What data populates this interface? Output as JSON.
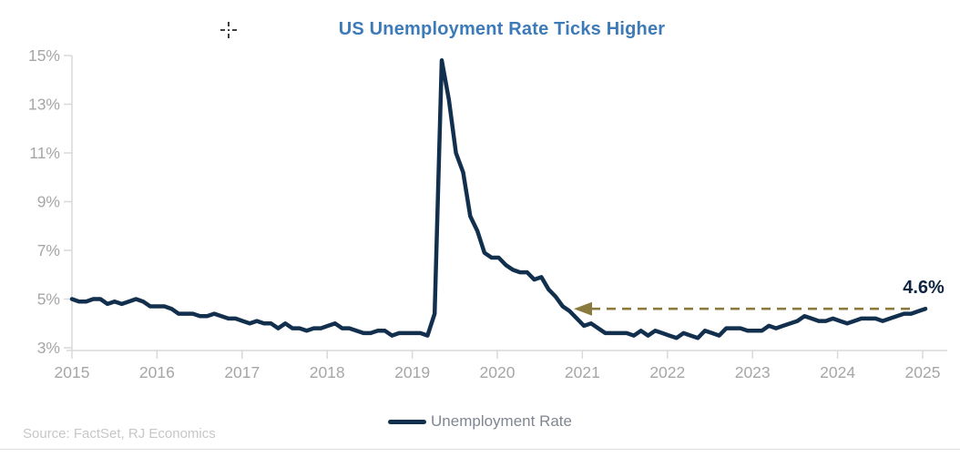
{
  "title": {
    "text": "US Unemployment Rate Ticks Higher",
    "color": "#3d7ab8"
  },
  "annotation": {
    "label": "4.6%",
    "value": 4.6,
    "text_color": "#0f2440",
    "arrow_color": "#8b7a3e"
  },
  "legend": {
    "label": "Unemployment Rate"
  },
  "source": {
    "text": "Source: FactSet, RJ Economics"
  },
  "colors": {
    "line": "#12304e",
    "axis": "#d9d9d9",
    "tick_labels": "#a6a6a6"
  },
  "chart_data": {
    "type": "line",
    "title": "US Unemployment Rate Ticks Higher",
    "xlabel": "",
    "ylabel": "",
    "ylim": [
      3,
      15
    ],
    "grid": false,
    "legend_position": "bottom",
    "x_tick_labels": [
      "2015",
      "2016",
      "2017",
      "2018",
      "2019",
      "2020",
      "2021",
      "2022",
      "2023",
      "2024",
      "2025"
    ],
    "y_tick_labels": [
      "15%",
      "13%",
      "11%",
      "9%",
      "7%",
      "5%",
      "3%"
    ],
    "series": [
      {
        "name": "Unemployment Rate",
        "color": "#12304e",
        "frequency": "monthly",
        "x_start": "2015-12",
        "x_end": "2025-12",
        "values": [
          5.0,
          4.9,
          4.9,
          5.0,
          5.0,
          4.8,
          4.9,
          4.8,
          4.9,
          5.0,
          4.9,
          4.7,
          4.7,
          4.7,
          4.6,
          4.4,
          4.4,
          4.4,
          4.3,
          4.3,
          4.4,
          4.3,
          4.2,
          4.2,
          4.1,
          4.0,
          4.1,
          4.0,
          4.0,
          3.8,
          4.0,
          3.8,
          3.8,
          3.7,
          3.8,
          3.8,
          3.9,
          4.0,
          3.8,
          3.8,
          3.7,
          3.6,
          3.6,
          3.7,
          3.7,
          3.5,
          3.6,
          3.6,
          3.6,
          3.6,
          3.5,
          4.4,
          14.8,
          13.2,
          11.0,
          10.2,
          8.4,
          7.8,
          6.9,
          6.7,
          6.7,
          6.4,
          6.2,
          6.1,
          6.1,
          5.8,
          5.9,
          5.4,
          5.1,
          4.7,
          4.5,
          4.2,
          3.9,
          4.0,
          3.8,
          3.6,
          3.6,
          3.6,
          3.6,
          3.5,
          3.7,
          3.5,
          3.7,
          3.6,
          3.5,
          3.4,
          3.6,
          3.5,
          3.4,
          3.7,
          3.6,
          3.5,
          3.8,
          3.8,
          3.8,
          3.7,
          3.7,
          3.7,
          3.9,
          3.8,
          3.9,
          4.0,
          4.1,
          4.3,
          4.2,
          4.1,
          4.1,
          4.2,
          4.1,
          4.0,
          4.1,
          4.2,
          4.2,
          4.2,
          4.1,
          4.2,
          4.3,
          4.4,
          4.4,
          4.5,
          4.6
        ]
      }
    ],
    "annotations": [
      {
        "text": "4.6%",
        "y": 4.6,
        "style": "dashed-left-arrow"
      }
    ]
  }
}
